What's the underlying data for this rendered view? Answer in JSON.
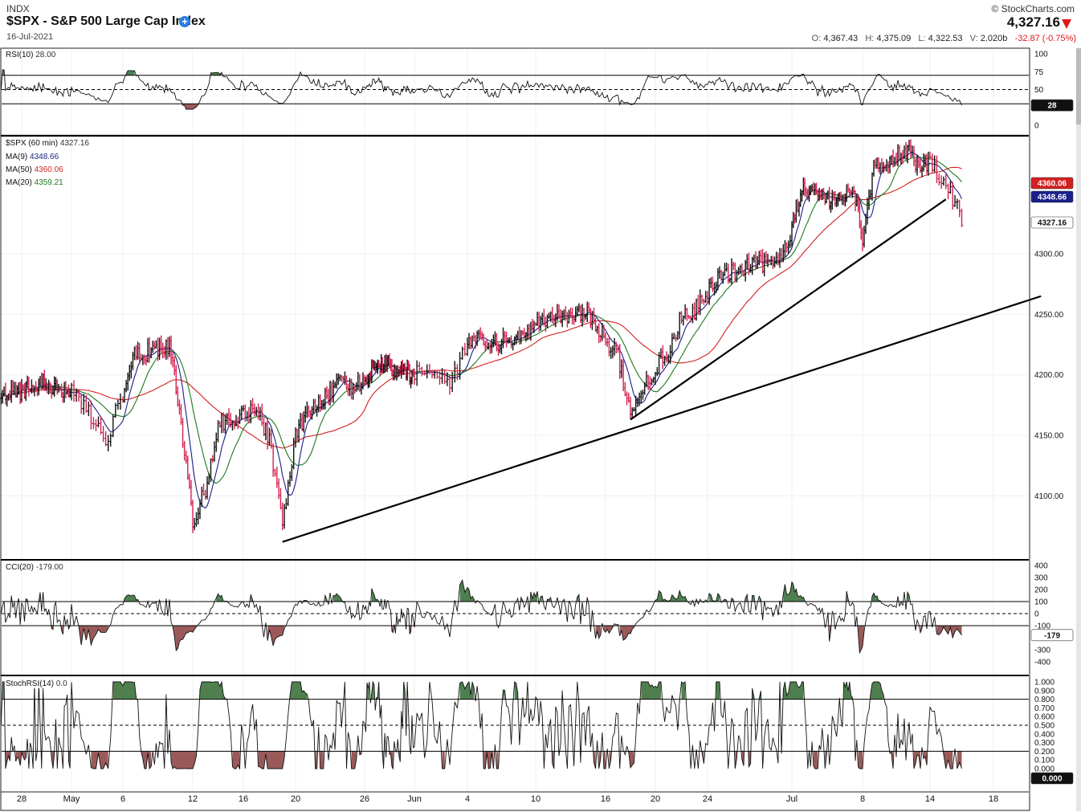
{
  "header": {
    "exchange": "INDX",
    "title": "$SPX - S&P 500 Large Cap Index",
    "date": "16-Jul-2021",
    "brand": "© StockCharts.com",
    "last_price": "4,327.16",
    "open_label": "O:",
    "open": "4,367.43",
    "high_label": "H:",
    "high": "4,375.09",
    "low_label": "L:",
    "low": "4,322.53",
    "volume_label": "V:",
    "volume": "2.020b",
    "change": "-32.87 (-0.75%)"
  },
  "colors": {
    "up_bar": "#111111",
    "down_bar": "#d42050",
    "ma9": "#1a1f8a",
    "ma50": "#d42020",
    "ma20": "#1d7a1d",
    "fill_over": "#4f7f4f",
    "fill_under": "#9a5a5a",
    "last_badge": "#111111"
  },
  "panels": {
    "rsi": {
      "label": "RSI(10)",
      "value": "28.00",
      "badge": "28"
    },
    "price": {
      "label": "$SPX (60 min)",
      "value": "4327.16",
      "ma9_label": "MA(9)",
      "ma9_value": "4348.66",
      "ma50_label": "MA(50)",
      "ma50_value": "4360.06",
      "ma20_label": "MA(20)",
      "ma20_value": "4359.21",
      "badges": {
        "ma50": "4360.06",
        "ma9": "4348.66",
        "last": "4327.16"
      }
    },
    "cci": {
      "label": "CCI(20)",
      "value": "-179.00",
      "badge": "-179"
    },
    "stochrsi": {
      "label": "StochRSI(14)",
      "value": "0.0",
      "badge": "0.000"
    }
  },
  "chart_data": [
    {
      "type": "line",
      "title": "RSI(10) 28.00",
      "ylim": [
        0,
        100
      ],
      "y_ticks": [
        "100",
        "75",
        "50",
        "25",
        "0"
      ],
      "reference_lines": [
        30,
        50,
        70
      ],
      "last_value": 28.0
    },
    {
      "type": "candlestick",
      "title": "$SPX (60 min) 4327.16",
      "ylim": [
        4050,
        4400
      ],
      "y_ticks": [
        "4300.00",
        "4250.00",
        "4200.00",
        "4150.00",
        "4100.00"
      ],
      "x_ticks": [
        "28",
        "May",
        "6",
        "12",
        "16",
        "20",
        "26",
        "Jun",
        "4",
        "10",
        "16",
        "20",
        "24",
        "Jul",
        "8",
        "14",
        "18"
      ],
      "x_tick_dates": [
        "2021-04-28",
        "2021-05-03",
        "2021-05-06",
        "2021-05-12",
        "2021-05-16",
        "2021-05-20",
        "2021-05-26",
        "2021-06-01",
        "2021-06-04",
        "2021-06-10",
        "2021-06-16",
        "2021-06-20",
        "2021-06-24",
        "2021-07-01",
        "2021-07-08",
        "2021-07-14",
        "2021-07-18"
      ],
      "close_series": [
        {
          "date": "2021-04-26",
          "close": 4187
        },
        {
          "date": "2021-04-28",
          "close": 4185
        },
        {
          "date": "2021-04-30",
          "close": 4195
        },
        {
          "date": "2021-05-03",
          "close": 4185
        },
        {
          "date": "2021-05-04",
          "close": 4170
        },
        {
          "date": "2021-05-05",
          "close": 4145
        },
        {
          "date": "2021-05-06",
          "close": 4185
        },
        {
          "date": "2021-05-07",
          "close": 4215
        },
        {
          "date": "2021-05-10",
          "close": 4225
        },
        {
          "date": "2021-05-11",
          "close": 4160
        },
        {
          "date": "2021-05-12",
          "close": 4080
        },
        {
          "date": "2021-05-13",
          "close": 4105
        },
        {
          "date": "2021-05-14",
          "close": 4160
        },
        {
          "date": "2021-05-17",
          "close": 4172
        },
        {
          "date": "2021-05-18",
          "close": 4145
        },
        {
          "date": "2021-05-19",
          "close": 4080
        },
        {
          "date": "2021-05-20",
          "close": 4148
        },
        {
          "date": "2021-05-21",
          "close": 4170
        },
        {
          "date": "2021-05-24",
          "close": 4195
        },
        {
          "date": "2021-05-25",
          "close": 4190
        },
        {
          "date": "2021-05-26",
          "close": 4196
        },
        {
          "date": "2021-05-27",
          "close": 4205
        },
        {
          "date": "2021-05-28",
          "close": 4208
        },
        {
          "date": "2021-06-01",
          "close": 4200
        },
        {
          "date": "2021-06-02",
          "close": 4205
        },
        {
          "date": "2021-06-03",
          "close": 4192
        },
        {
          "date": "2021-06-04",
          "close": 4228
        },
        {
          "date": "2021-06-07",
          "close": 4227
        },
        {
          "date": "2021-06-08",
          "close": 4229
        },
        {
          "date": "2021-06-09",
          "close": 4230
        },
        {
          "date": "2021-06-10",
          "close": 4240
        },
        {
          "date": "2021-06-11",
          "close": 4246
        },
        {
          "date": "2021-06-14",
          "close": 4252
        },
        {
          "date": "2021-06-15",
          "close": 4245
        },
        {
          "date": "2021-06-16",
          "close": 4230
        },
        {
          "date": "2021-06-17",
          "close": 4215
        },
        {
          "date": "2021-06-18",
          "close": 4170
        },
        {
          "date": "2021-06-21",
          "close": 4222
        },
        {
          "date": "2021-06-22",
          "close": 4248
        },
        {
          "date": "2021-06-23",
          "close": 4253
        },
        {
          "date": "2021-06-24",
          "close": 4270
        },
        {
          "date": "2021-06-25",
          "close": 4282
        },
        {
          "date": "2021-06-28",
          "close": 4292
        },
        {
          "date": "2021-06-29",
          "close": 4292
        },
        {
          "date": "2021-06-30",
          "close": 4298
        },
        {
          "date": "2021-07-01",
          "close": 4320
        },
        {
          "date": "2021-07-02",
          "close": 4352
        },
        {
          "date": "2021-07-06",
          "close": 4343
        },
        {
          "date": "2021-07-07",
          "close": 4358
        },
        {
          "date": "2021-07-08",
          "close": 4315
        },
        {
          "date": "2021-07-09",
          "close": 4370
        },
        {
          "date": "2021-07-12",
          "close": 4385
        },
        {
          "date": "2021-07-13",
          "close": 4370
        },
        {
          "date": "2021-07-14",
          "close": 4374
        },
        {
          "date": "2021-07-15",
          "close": 4360
        },
        {
          "date": "2021-07-16",
          "close": 4327
        }
      ],
      "series": [
        {
          "name": "MA(9)",
          "last": 4348.66
        },
        {
          "name": "MA(50)",
          "last": 4360.06
        },
        {
          "name": "MA(20)",
          "last": 4359.21
        }
      ],
      "trendlines": [
        {
          "from": {
            "date": "2021-05-19",
            "price": 4062
          },
          "to": {
            "date": "2021-07-21",
            "price": 4265
          }
        },
        {
          "from": {
            "date": "2021-06-18",
            "price": 4163
          },
          "to": {
            "date": "2021-07-15",
            "price": 4345
          }
        }
      ]
    },
    {
      "type": "line",
      "title": "CCI(20) -179.00",
      "ylim": [
        -500,
        450
      ],
      "y_ticks": [
        "400",
        "300",
        "200",
        "100",
        "0",
        "-100",
        "-200",
        "-300",
        "-400"
      ],
      "reference_lines": [
        -100,
        0,
        100
      ],
      "last_value": -179.0
    },
    {
      "type": "line",
      "title": "StochRSI(14) 0.0",
      "ylim": [
        0,
        1
      ],
      "y_ticks": [
        "1.000",
        "0.900",
        "0.800",
        "0.700",
        "0.600",
        "0.500",
        "0.400",
        "0.300",
        "0.200",
        "0.100",
        "0.000"
      ],
      "reference_lines": [
        0.2,
        0.5,
        0.8
      ],
      "last_value": 0.0
    }
  ]
}
